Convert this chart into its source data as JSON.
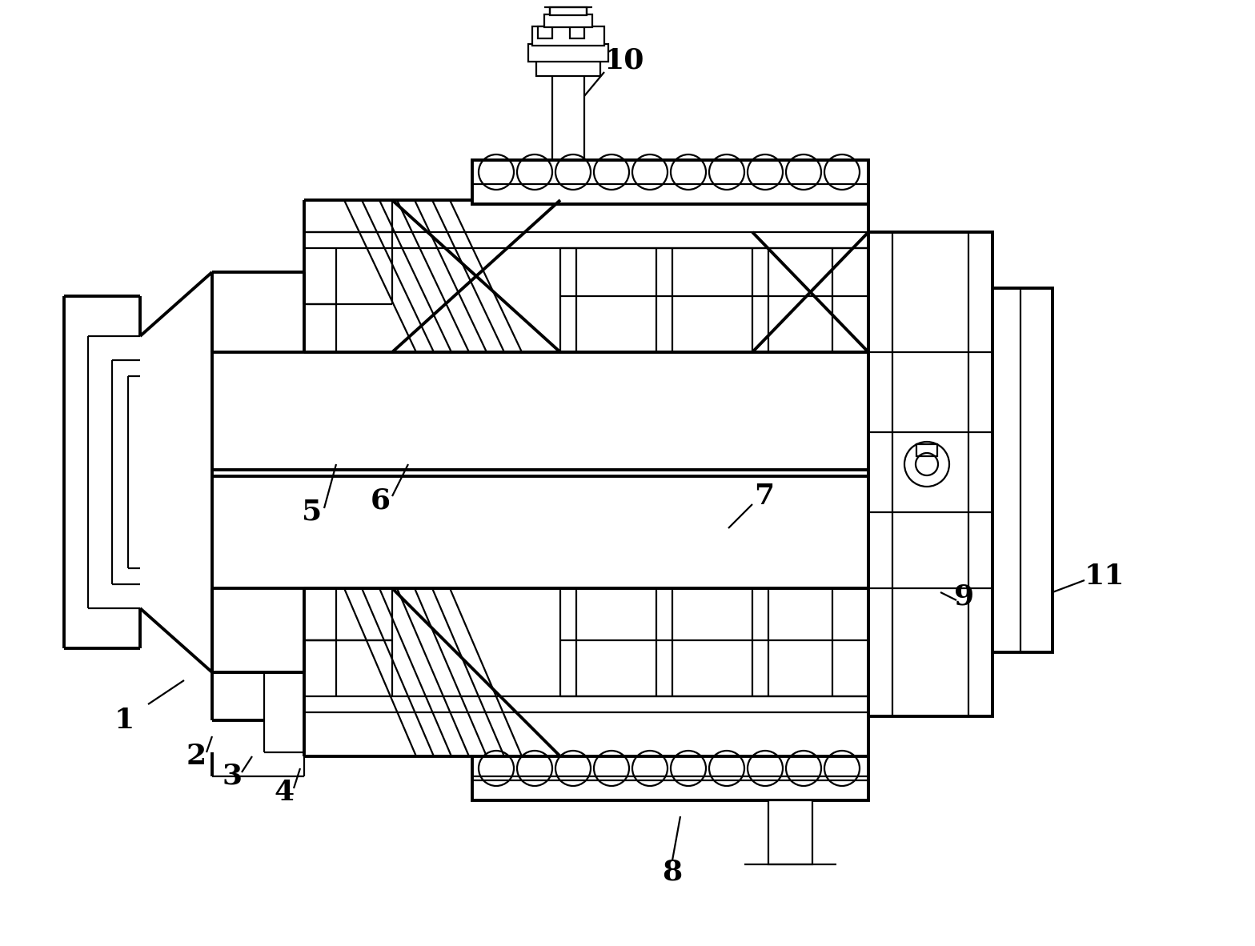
{
  "bg": "#ffffff",
  "lc": "#000000",
  "lw": 1.6,
  "blw": 2.8,
  "fw": 15.68,
  "fh": 11.82,
  "dpi": 100,
  "xlim": [
    0,
    1568
  ],
  "ylim": [
    0,
    1182
  ]
}
